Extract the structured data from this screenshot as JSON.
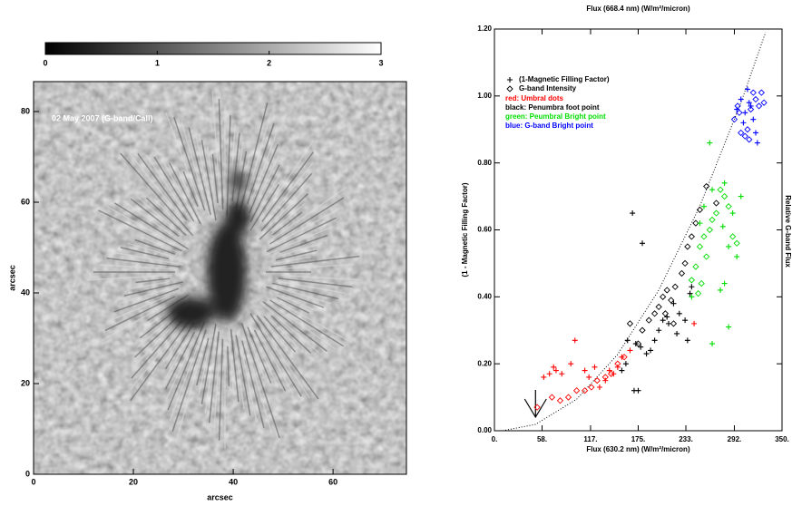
{
  "chart_data": [
    {
      "type": "image",
      "annotation": "02 May 2007 (G-band/CaII)",
      "xlabel": "arcsec",
      "ylabel": "arcsec",
      "xlim": [
        0,
        74.7
      ],
      "ylim": [
        0,
        86.6
      ],
      "xticks": [
        0,
        20,
        40,
        60
      ],
      "yticks": [
        0,
        20,
        40,
        60,
        80
      ],
      "colorbar": {
        "lim": [
          0,
          3
        ],
        "ticks": [
          0,
          1,
          2,
          3
        ]
      }
    },
    {
      "type": "scatter",
      "title": "Flux (668.4 nm) (W/m²/micron)",
      "xlabel": "Flux (630.2 nm) (W/m²/micron)",
      "ylabel": "(1 - Magnetic Filling Factor)",
      "y2label": "Relative G-band Flux",
      "xlim": [
        0,
        350
      ],
      "ylim": [
        0,
        1.2
      ],
      "xticks": [
        {
          "value": 0,
          "label": "0."
        },
        {
          "value": 58,
          "label": "58."
        },
        {
          "value": 117,
          "label": "117."
        },
        {
          "value": 175,
          "label": "175."
        },
        {
          "value": 233,
          "label": "233."
        },
        {
          "value": 292,
          "label": "292."
        },
        {
          "value": 350,
          "label": "350."
        }
      ],
      "yticks": [
        {
          "value": 0,
          "label": "0.00"
        },
        {
          "value": 0.2,
          "label": "0.20"
        },
        {
          "value": 0.4,
          "label": "0.40"
        },
        {
          "value": 0.6,
          "label": "0.60"
        },
        {
          "value": 0.8,
          "label": "0.80"
        },
        {
          "value": 1,
          "label": "1.00"
        },
        {
          "value": 1.2,
          "label": "1.20"
        }
      ],
      "legend": [
        {
          "marker": "cross",
          "label": "(1-Magnetic Filling Factor)"
        },
        {
          "marker": "diamond",
          "label": "G-band Intensity"
        }
      ],
      "notes": [
        {
          "text": "red: Umbral dots",
          "color": "#ff0000"
        },
        {
          "text": "black: Penumbra foot point",
          "color": "#000000"
        },
        {
          "text": "green: Peumbral Bright point",
          "color": "#00dd00"
        },
        {
          "text": "blue: G-band Bright point",
          "color": "#0000ff"
        }
      ],
      "curve": {
        "x": [
          10,
          50,
          100,
          150,
          200,
          250,
          300,
          330
        ],
        "values": [
          0,
          0.019,
          0.094,
          0.228,
          0.42,
          0.671,
          0.98,
          1.19
        ]
      },
      "arrow_x": 50,
      "series": [
        {
          "color": "#ff0000",
          "marker": "cross",
          "x": [
            60,
            67,
            72,
            75,
            82,
            93,
            98,
            110,
            115,
            122,
            128,
            135,
            140,
            145,
            150,
            155,
            165,
            243
          ],
          "values": [
            0.16,
            0.17,
            0.19,
            0.18,
            0.17,
            0.2,
            0.27,
            0.18,
            0.16,
            0.19,
            0.13,
            0.15,
            0.18,
            0.17,
            0.19,
            0.22,
            0.24,
            0.32
          ]
        },
        {
          "color": "#ff0000",
          "marker": "diamond",
          "x": [
            52,
            70,
            80,
            90,
            100,
            110,
            118,
            125,
            135,
            142,
            150,
            158
          ],
          "values": [
            0.07,
            0.1,
            0.09,
            0.1,
            0.12,
            0.12,
            0.13,
            0.15,
            0.16,
            0.17,
            0.2,
            0.22
          ]
        },
        {
          "color": "#000000",
          "marker": "cross",
          "x": [
            168,
            180,
            170,
            175,
            162,
            172,
            178,
            185,
            190,
            195,
            200,
            205,
            210,
            212,
            218,
            225,
            232,
            238,
            240,
            235,
            222,
            155,
            160
          ],
          "values": [
            0.65,
            0.56,
            0.12,
            0.12,
            0.27,
            0.26,
            0.25,
            0.23,
            0.24,
            0.27,
            0.3,
            0.33,
            0.34,
            0.32,
            0.38,
            0.35,
            0.33,
            0.41,
            0.43,
            0.27,
            0.29,
            0.18,
            0.2
          ]
        },
        {
          "color": "#000000",
          "marker": "diamond",
          "x": [
            165,
            175,
            180,
            188,
            195,
            200,
            205,
            210,
            215,
            220,
            228,
            232,
            235,
            240,
            245,
            250,
            258,
            270,
            218,
            208
          ],
          "values": [
            0.32,
            0.26,
            0.3,
            0.33,
            0.35,
            0.37,
            0.4,
            0.42,
            0.39,
            0.43,
            0.47,
            0.5,
            0.55,
            0.58,
            0.62,
            0.66,
            0.73,
            0.68,
            0.32,
            0.35
          ]
        },
        {
          "color": "#00dd00",
          "marker": "cross",
          "x": [
            250,
            255,
            262,
            265,
            280,
            290,
            278,
            285,
            275,
            280,
            285,
            265,
            295,
            300,
            240
          ],
          "values": [
            0.62,
            0.67,
            0.86,
            0.72,
            0.74,
            0.65,
            0.61,
            0.55,
            0.42,
            0.44,
            0.31,
            0.26,
            0.52,
            0.7,
            0.4
          ]
        },
        {
          "color": "#00dd00",
          "marker": "diamond",
          "x": [
            240,
            245,
            250,
            255,
            258,
            262,
            265,
            270,
            275,
            280,
            285,
            290,
            295,
            248,
            252
          ],
          "values": [
            0.45,
            0.49,
            0.55,
            0.58,
            0.52,
            0.6,
            0.63,
            0.65,
            0.72,
            0.7,
            0.67,
            0.58,
            0.56,
            0.41,
            0.44
          ]
        },
        {
          "color": "#0000ff",
          "marker": "cross",
          "x": [
            295,
            300,
            305,
            308,
            312,
            315,
            318,
            320,
            310,
            303
          ],
          "values": [
            0.96,
            0.99,
            0.95,
            1.02,
            0.97,
            0.93,
            0.89,
            0.86,
            0.98,
            0.92
          ]
        },
        {
          "color": "#0000ff",
          "marker": "diamond",
          "x": [
            292,
            298,
            305,
            308,
            312,
            315,
            318,
            322,
            325,
            328,
            310,
            300,
            296
          ],
          "values": [
            0.93,
            0.95,
            0.88,
            0.9,
            0.96,
            1.01,
            0.99,
            0.97,
            1.01,
            0.98,
            0.87,
            0.89,
            0.97
          ]
        }
      ]
    }
  ]
}
